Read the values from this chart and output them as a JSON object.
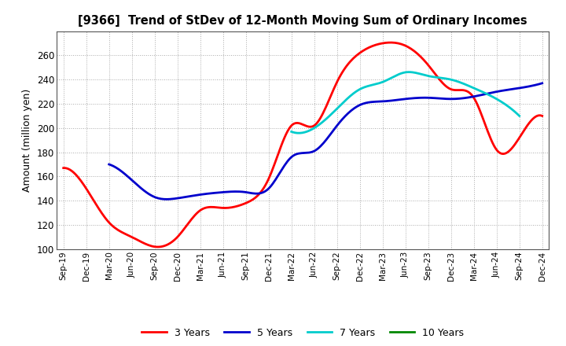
{
  "title": "[9366]  Trend of StDev of 12-Month Moving Sum of Ordinary Incomes",
  "ylabel": "Amount (million yen)",
  "ylim": [
    100,
    280
  ],
  "yticks": [
    100,
    120,
    140,
    160,
    180,
    200,
    220,
    240,
    260
  ],
  "background_color": "#ffffff",
  "x_labels": [
    "Sep-19",
    "Dec-19",
    "Mar-20",
    "Jun-20",
    "Sep-20",
    "Dec-20",
    "Mar-21",
    "Jun-21",
    "Sep-21",
    "Dec-21",
    "Mar-22",
    "Jun-22",
    "Sep-22",
    "Dec-22",
    "Mar-23",
    "Jun-23",
    "Sep-23",
    "Dec-23",
    "Mar-24",
    "Jun-24",
    "Sep-24",
    "Dec-24"
  ],
  "series_3yr": [
    167,
    150,
    122,
    110,
    102,
    110,
    132,
    134,
    138,
    158,
    202,
    202,
    238,
    262,
    270,
    268,
    252,
    232,
    225,
    182,
    192,
    210
  ],
  "series_5yr": [
    null,
    null,
    170,
    157,
    143,
    142,
    145,
    147,
    147,
    150,
    176,
    181,
    202,
    219,
    222,
    224,
    225,
    224,
    226,
    230,
    233,
    237
  ],
  "series_7yr": [
    null,
    null,
    null,
    null,
    null,
    null,
    null,
    null,
    null,
    null,
    197,
    200,
    216,
    232,
    238,
    246,
    243,
    240,
    233,
    224,
    210,
    null
  ],
  "series_10yr": [
    null,
    null,
    null,
    null,
    null,
    null,
    null,
    null,
    null,
    null,
    null,
    null,
    null,
    null,
    null,
    null,
    null,
    null,
    null,
    null,
    null,
    null
  ],
  "color_3yr": "#ff0000",
  "color_5yr": "#0000cc",
  "color_7yr": "#00cccc",
  "color_10yr": "#008800",
  "linewidth": 2.0,
  "legend_entries": [
    "3 Years",
    "5 Years",
    "7 Years",
    "10 Years"
  ],
  "legend_colors": [
    "#ff0000",
    "#0000cc",
    "#00cccc",
    "#008800"
  ]
}
